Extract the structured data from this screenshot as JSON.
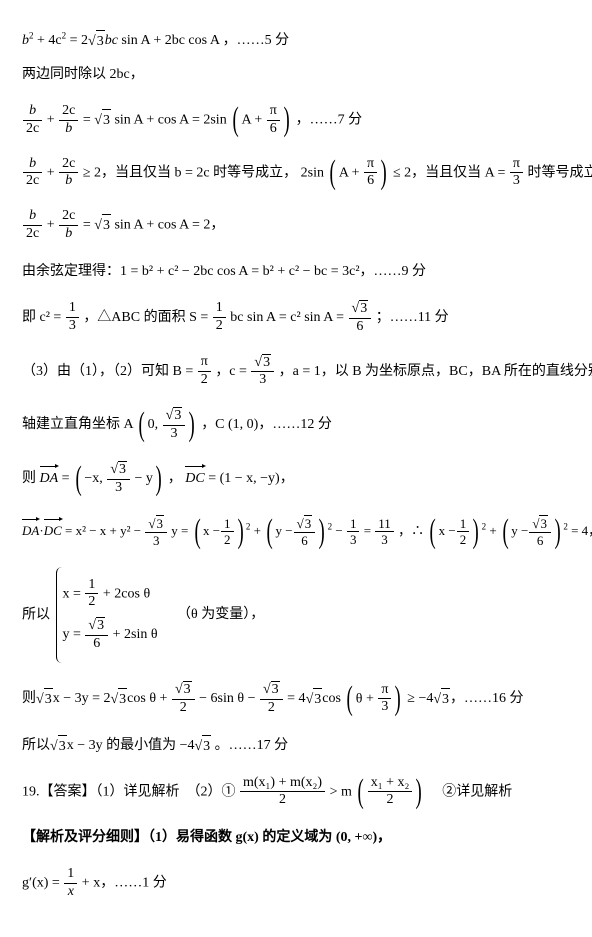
{
  "l1": {
    "a": "b",
    "b": "+ 4c",
    "c": "= 2",
    "d": "3",
    "e": "bc",
    "f": "sin A + 2bc cos A ，……5 分"
  },
  "l2": "两边同时除以 2bc，",
  "l3": {
    "f1n": "b",
    "f1d": "2c",
    "f2n": "2c",
    "f2d": "b",
    "mid": "=",
    "r1": "3",
    "r2": " sin A + cos A = 2sin",
    "pn": "A +",
    "pfn": "π",
    "pfd": "6",
    "tail": "，……7 分"
  },
  "l4": {
    "f1n": "b",
    "f1d": "2c",
    "f2n": "2c",
    "f2d": "b",
    "ge": "≥ 2，当且仅当 b = 2c 时等号成立，",
    "sin": "2sin",
    "pn": "A +",
    "pfn": "π",
    "pfd": "6",
    "le": "≤ 2，当且仅当 A =",
    "an": "π",
    "ad": "3",
    "tail": "时等号成立，即"
  },
  "l5": {
    "f1n": "b",
    "f1d": "2c",
    "f2n": "2c",
    "f2d": "b",
    "eq": "=",
    "r1": "3",
    "r2": " sin A + cos A = 2，"
  },
  "l6": "由余弦定理得：1 = b² + c² − 2bc cos A = b² + c² − bc = 3c²，……9 分",
  "l7": {
    "a": "即 c² =",
    "fn": "1",
    "fd": "3",
    "b": "，△ABC 的面积 S =",
    "gn": "1",
    "gd": "2",
    "c": "bc sin A = c² sin A =",
    "hn": "3",
    "hd": "6",
    "tail": "；……11 分"
  },
  "l8": {
    "a": "（3）由（1），（2）可知 B =",
    "bn": "π",
    "bd": "2",
    "c": "，c =",
    "dn": "3",
    "dd": "3",
    "e": "，a = 1，以 B 为坐标原点，BC，BA 所在的直线分别为 x ，y"
  },
  "l9": {
    "a": "轴建立直角坐标 A",
    "pn": "0,",
    "fn": "3",
    "fd": "3",
    "b": "，C (1, 0)，……12 分"
  },
  "l10": {
    "a": "则",
    "v1": "DA",
    "eq": "=",
    "p1a": "−x,",
    "fn": "3",
    "fd": "3",
    "p1b": "− y",
    "c": "，",
    "v2": "DC",
    "d": "= (1 − x, −y)，"
  },
  "l11": {
    "v1": "DA",
    "dot": "·",
    "v2": "DC",
    "a": "= x² − x + y² −",
    "fn": "3",
    "fd": "3",
    "b": "y =",
    "p1a": "x −",
    "p1n": "1",
    "p1d": "2",
    "p2a": "y −",
    "p2n": "3",
    "p2d": "6",
    "c": "−",
    "gn": "1",
    "gd": "3",
    "d": "=",
    "hn": "11",
    "hd": "3",
    "e": "，∴",
    "p3a": "x −",
    "p3n": "1",
    "p3d": "2",
    "p4a": "y −",
    "p4n": "3",
    "p4d": "6",
    "f": "= 4，"
  },
  "l12": {
    "a": "所以",
    "r1a": "x =",
    "r1n": "1",
    "r1d": "2",
    "r1b": "+ 2cos θ",
    "r2a": "y =",
    "r2n": "3",
    "r2d": "6",
    "r2b": "+ 2sin θ",
    "note": "（θ 为变量），"
  },
  "l13": {
    "a": "则",
    "r1": "3",
    "b": "x − 3y = 2",
    "r2": "3",
    "c": "cos θ +",
    "fn": "3",
    "fd": "2",
    "d": "− 6sin θ −",
    "gn": "3",
    "gd": "2",
    "e": "= 4",
    "r3": "3",
    "f": "cos",
    "pn": "θ +",
    "pfn": "π",
    "pfd": "3",
    "g": "≥ −4",
    "r4": "3",
    "tail": "，……16 分"
  },
  "l14": {
    "a": "所以",
    "r": "3",
    "b": "x − 3y 的最小值为 −4",
    "r2": "3",
    "tail": " 。……17 分"
  },
  "l15": {
    "a": "19.【答案】（1）详见解析　（2）①",
    "fn": "m(x₁) + m(x₂)",
    "fd": "2",
    "b": "> m",
    "pn": "x₁ + x₂",
    "pd": "2",
    "c": "　②详见解析"
  },
  "l16": "【解析及评分细则】（1）易得函数 g(x) 的定义域为 (0, +∞)，",
  "l17": {
    "a": "g′(x) =",
    "fn": "1",
    "fd": "x",
    "b": "+ x，……1 分"
  }
}
